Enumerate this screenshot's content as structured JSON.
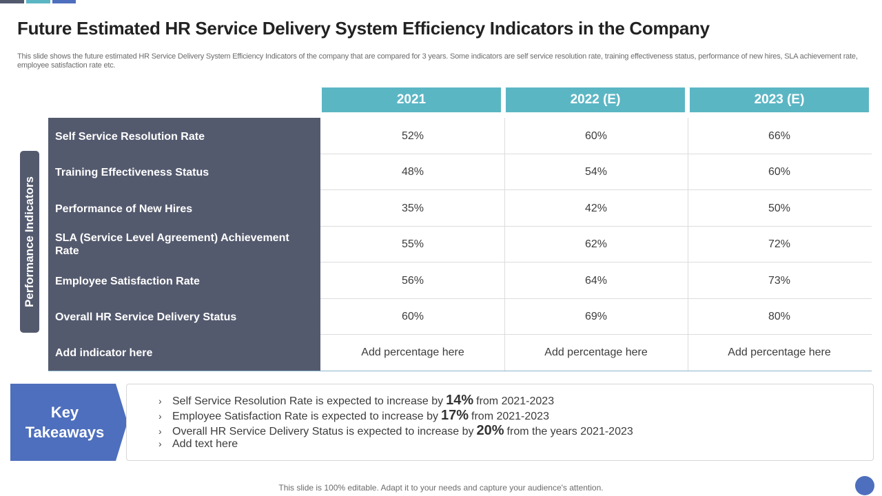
{
  "title": "Future Estimated HR Service Delivery System Efficiency Indicators in the Company",
  "subtitle": "This slide shows the future estimated HR Service Delivery System Efficiency Indicators of the company that are compared for 3 years. Some indicators are self service resolution rate, training effectiveness status, performance of new hires, SLA achievement rate, employee satisfaction rate etc.",
  "side_label": "Performance Indicators",
  "table": {
    "years": [
      "2021",
      "2022 (E)",
      "2023 (E)"
    ],
    "rows": [
      {
        "label": "Self Service Resolution Rate",
        "values": [
          "52%",
          "60%",
          "66%"
        ]
      },
      {
        "label": "Training Effectiveness Status",
        "values": [
          "48%",
          "54%",
          "60%"
        ]
      },
      {
        "label": "Performance of New Hires",
        "values": [
          "35%",
          "42%",
          "50%"
        ]
      },
      {
        "label": "SLA (Service Level Agreement) Achievement Rate",
        "values": [
          "55%",
          "62%",
          "72%"
        ]
      },
      {
        "label": "Employee Satisfaction Rate",
        "values": [
          "56%",
          "64%",
          "73%"
        ]
      },
      {
        "label": "Overall HR Service Delivery Status",
        "values": [
          "60%",
          "69%",
          "80%"
        ]
      },
      {
        "label": "Add indicator here",
        "values": [
          "Add percentage here",
          "Add percentage here",
          "Add percentage here"
        ]
      }
    ]
  },
  "key_takeaways": {
    "heading": "Key Takeaways",
    "items": [
      {
        "before": "Self Service Resolution Rate is expected to increase by",
        "highlight": "14%",
        "after": "from 2021-2023"
      },
      {
        "before": "Employee Satisfaction Rate is expected to increase by",
        "highlight": "17%",
        "after": "from 2021-2023"
      },
      {
        "before": "Overall HR Service Delivery Status is expected to increase by",
        "highlight": "20%",
        "after": "from the years 2021-2023"
      },
      {
        "before": "Add text here",
        "highlight": "",
        "after": ""
      }
    ]
  },
  "footer": "This slide is 100% editable. Adapt it to your needs and capture your audience's attention.",
  "colors": {
    "slate": "#545a6e",
    "teal": "#5bb6c4",
    "blue": "#4e6fbd"
  }
}
